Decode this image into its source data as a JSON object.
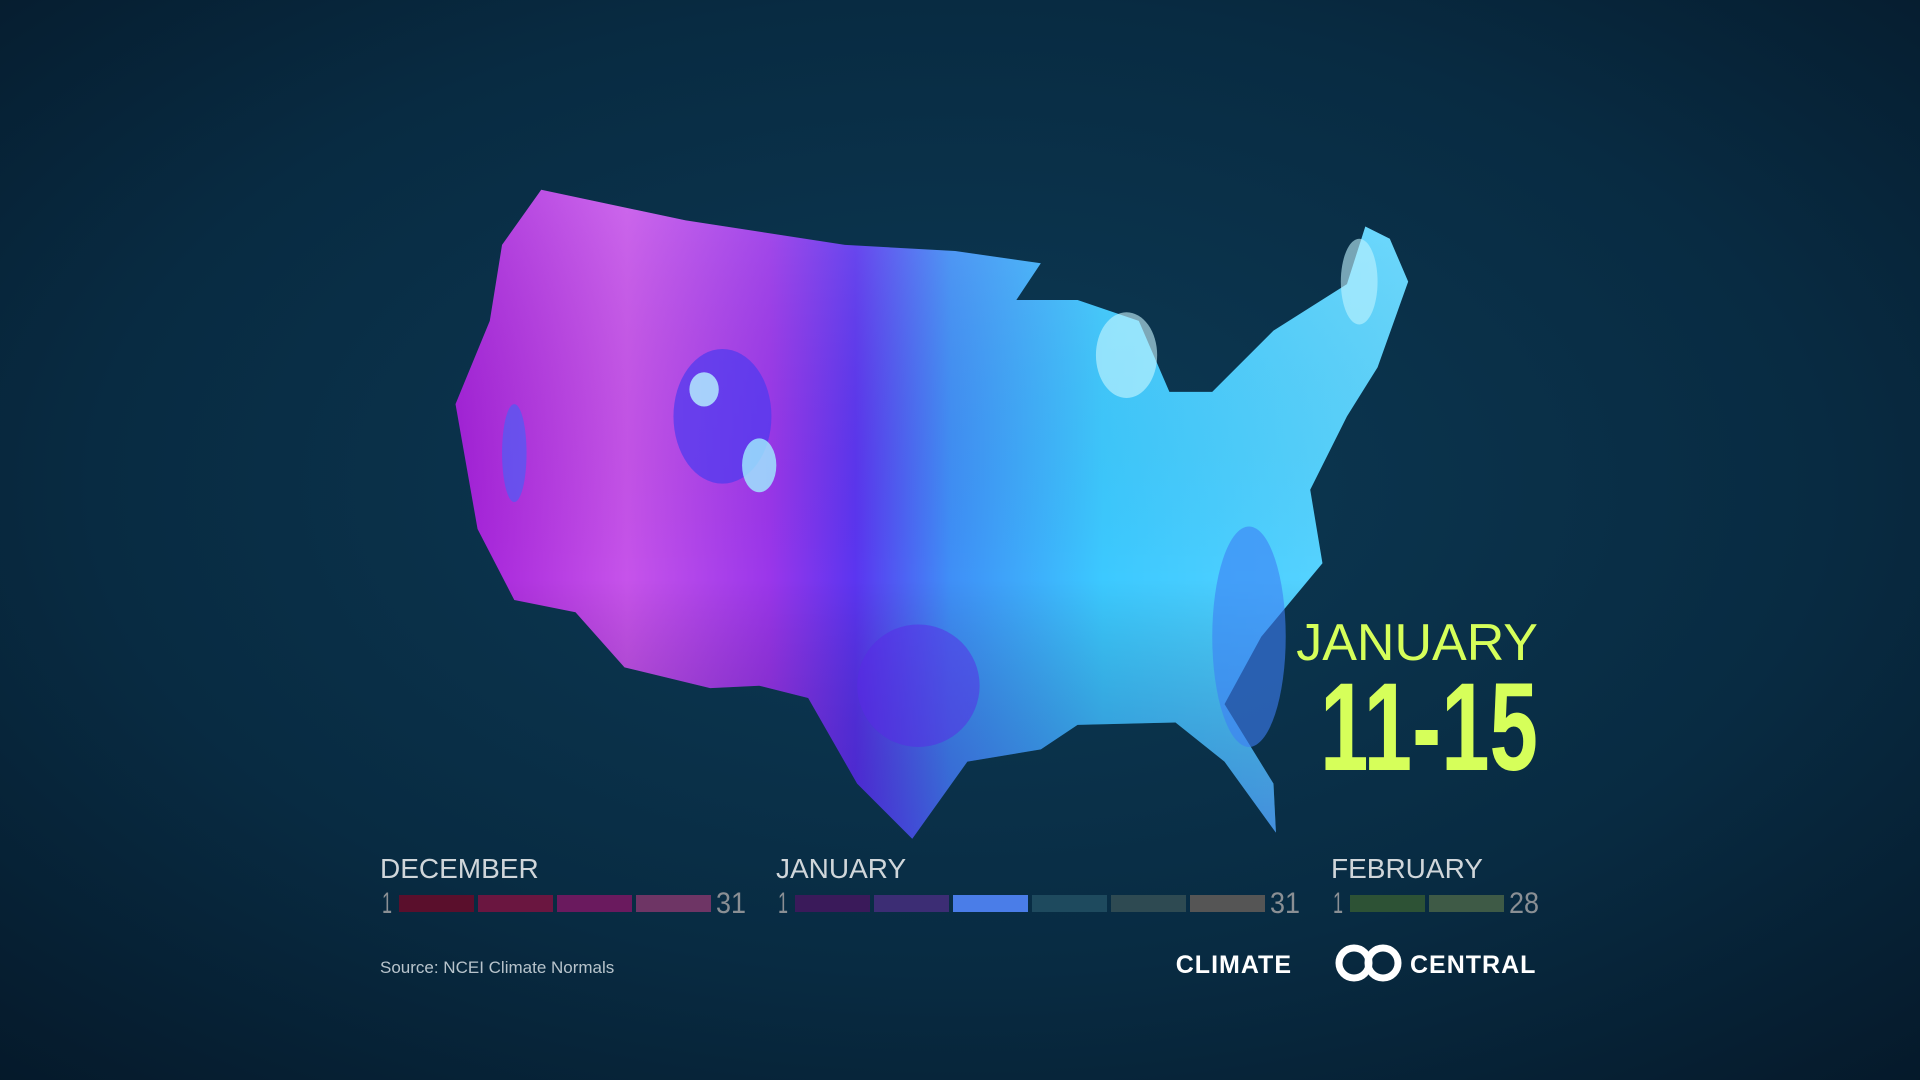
{
  "header": {
    "month": "JANUARY",
    "days": "11-15"
  },
  "legend": [
    {
      "month": "DECEMBER",
      "start": "1",
      "end": "31",
      "colors": [
        "#5a0f2c",
        "#6a1640",
        "#6a1a5e",
        "#6e3565"
      ]
    },
    {
      "month": "JANUARY",
      "start": "1",
      "end": "31",
      "colors": [
        "#3a1a5a",
        "#3c2d74",
        "#4a7de8",
        "#1e4a5e",
        "#2e4a52",
        "#555555"
      ]
    },
    {
      "month": "FEBRUARY",
      "start": "1",
      "end": "28",
      "colors": [
        "#2d5235",
        "#3e5a46"
      ]
    }
  ],
  "source": "Source: NCEI Climate Normals",
  "logo": {
    "left": "CLIMATE",
    "right": "CENTRAL"
  }
}
